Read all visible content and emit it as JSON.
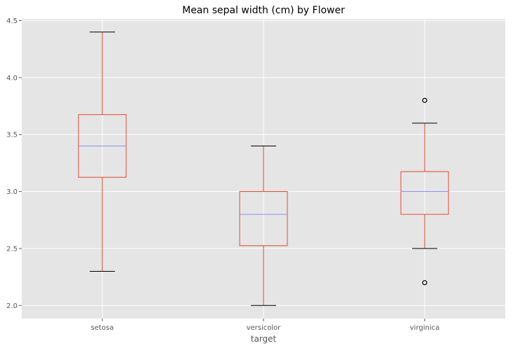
{
  "chart_data": {
    "type": "box",
    "title": "Mean sepal width (cm) by Flower",
    "xlabel": "target",
    "ylabel": "",
    "ylim": [
      1.885,
      4.515
    ],
    "yticks": [
      2.0,
      2.5,
      3.0,
      3.5,
      4.0,
      4.5
    ],
    "ytick_labels": [
      "2.0",
      "2.5",
      "3.0",
      "3.5",
      "4.0",
      "4.5"
    ],
    "grid": true,
    "categories": [
      "setosa",
      "versicolor",
      "virginica"
    ],
    "boxes": [
      {
        "category": "setosa",
        "whisker_low": 2.3,
        "q1": 3.125,
        "median": 3.4,
        "q3": 3.675,
        "whisker_high": 4.4,
        "outliers": []
      },
      {
        "category": "versicolor",
        "whisker_low": 2.0,
        "q1": 2.525,
        "median": 2.8,
        "q3": 3.0,
        "whisker_high": 3.4,
        "outliers": []
      },
      {
        "category": "virginica",
        "whisker_low": 2.5,
        "q1": 2.8,
        "median": 3.0,
        "q3": 3.175,
        "whisker_high": 3.6,
        "outliers": [
          3.8,
          2.2
        ]
      }
    ],
    "colors": {
      "background": "#e5e5e5",
      "grid": "#ffffff",
      "box": "#e24a33",
      "median": "#8a8ff0",
      "cap": "#000000",
      "outlier": "#000000"
    }
  }
}
